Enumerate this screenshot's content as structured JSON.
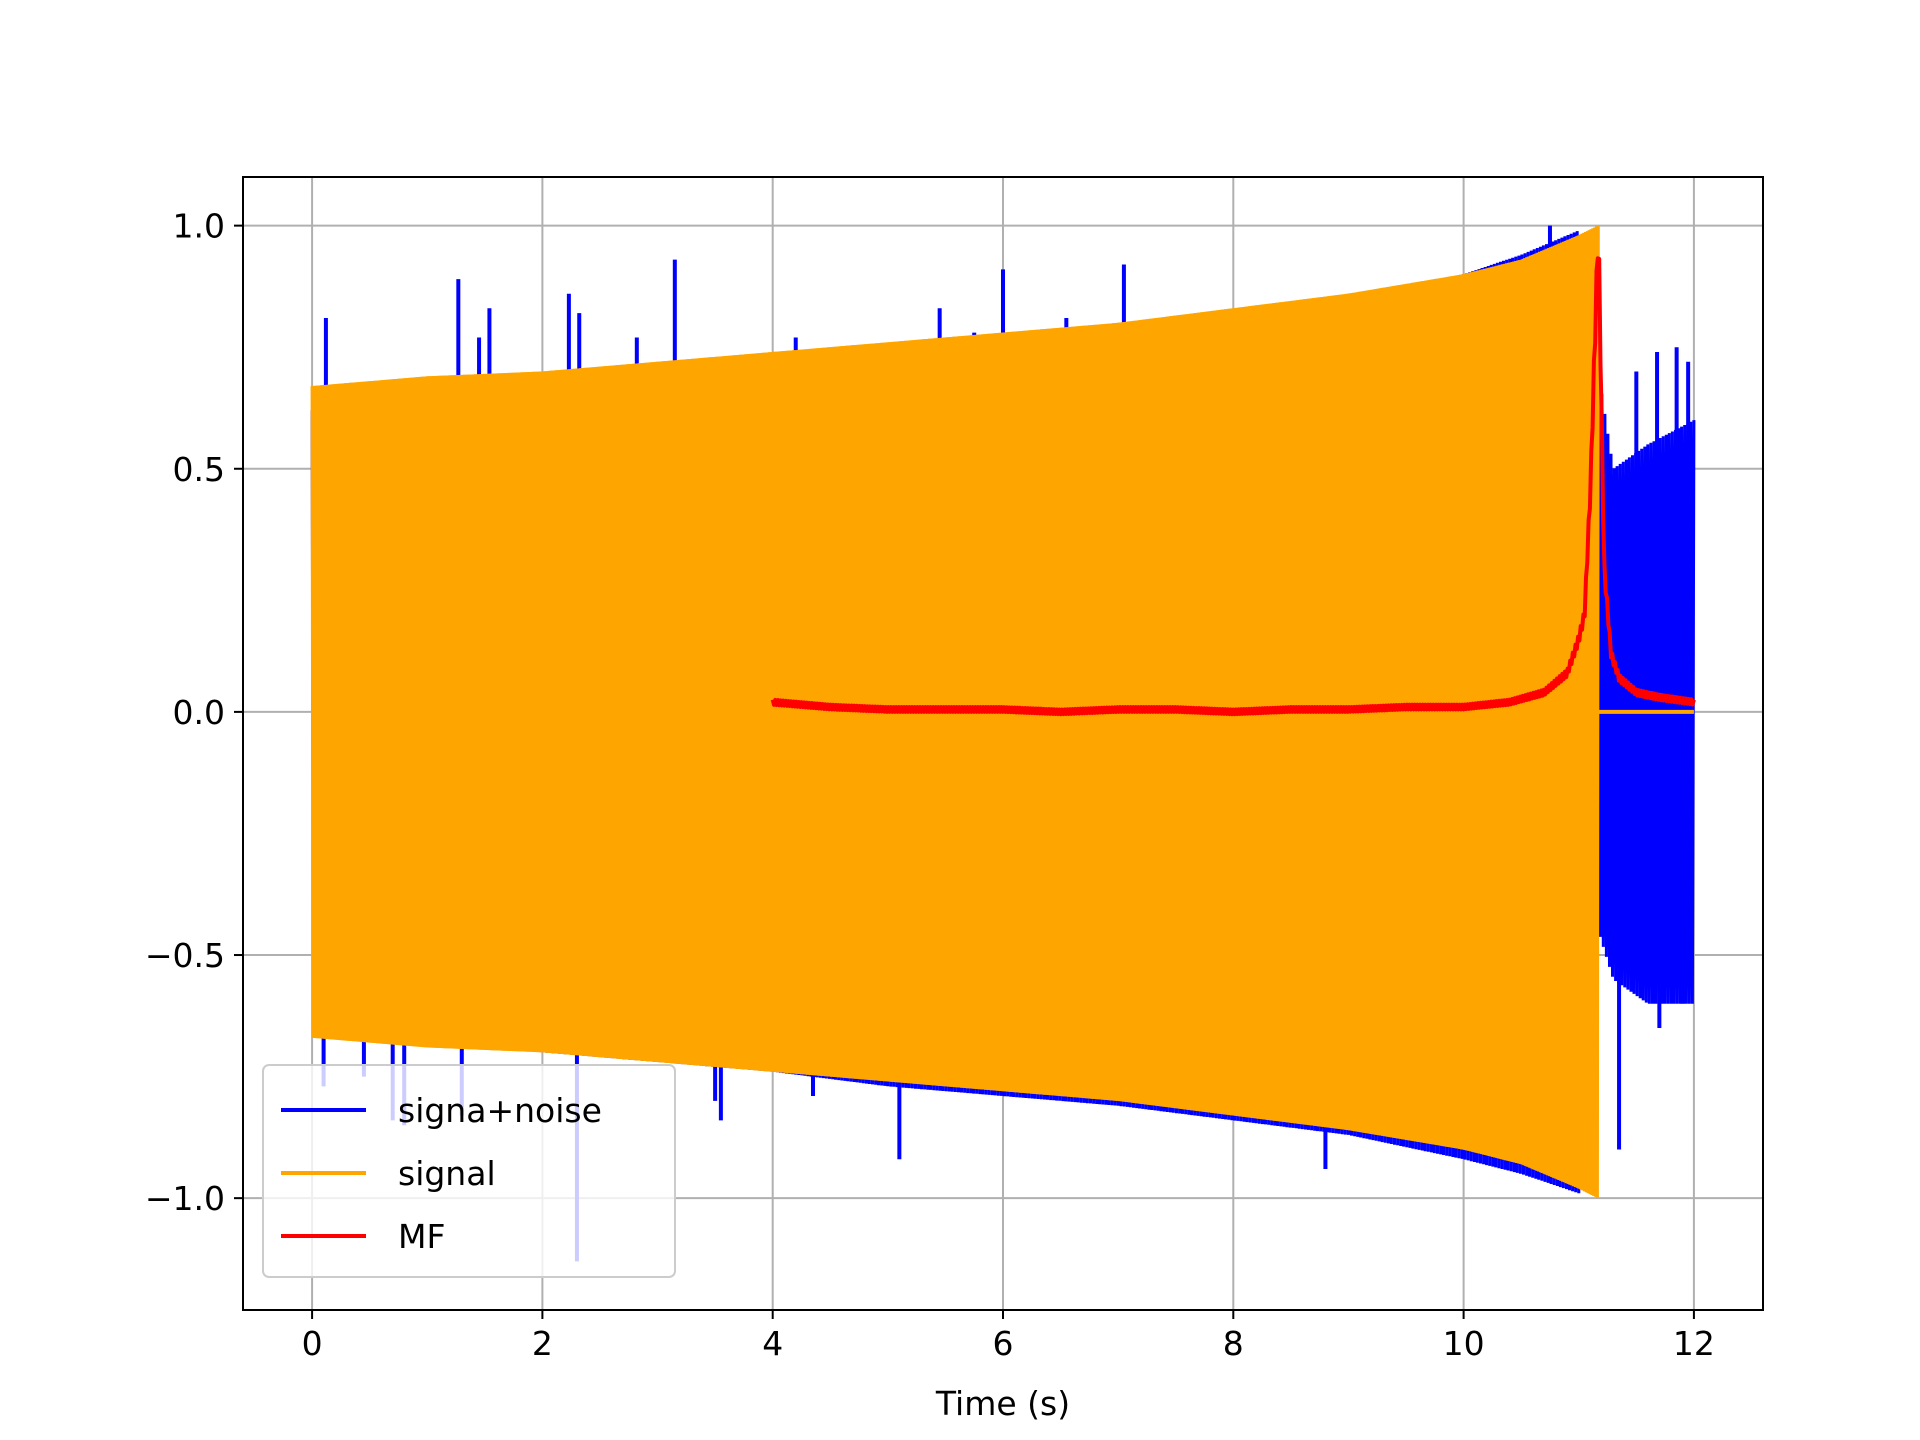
{
  "chart_data": {
    "type": "line",
    "title": "",
    "xlabel": "Time (s)",
    "ylabel": "",
    "xlim": [
      -0.6,
      12.6
    ],
    "ylim": [
      -1.23,
      1.1
    ],
    "xticks": [
      0,
      2,
      4,
      6,
      8,
      10,
      12
    ],
    "yticks": [
      -1.0,
      -0.5,
      0.0,
      0.5,
      1.0
    ],
    "xtick_labels": [
      "0",
      "2",
      "4",
      "6",
      "8",
      "10",
      "12"
    ],
    "ytick_labels": [
      "−1.0",
      "−0.5",
      "0.0",
      "0.5",
      "1.0"
    ],
    "grid": true,
    "legend_position": "lower-left",
    "series": [
      {
        "name": "signa+noise",
        "color": "#0000ff",
        "description_of_shape": "oscillating chirp plus noise spikes",
        "envelope_x": [
          0,
          1,
          2,
          3,
          4,
          5,
          6,
          7,
          8,
          9,
          10,
          10.5,
          11.0,
          11.17,
          11.3,
          11.6,
          12.0
        ],
        "envelope_upper": [
          0.62,
          0.65,
          0.66,
          0.68,
          0.71,
          0.73,
          0.76,
          0.78,
          0.81,
          0.84,
          0.9,
          0.94,
          0.99,
          0.7,
          0.5,
          0.55,
          0.6
        ],
        "envelope_lower": [
          -0.66,
          -0.68,
          -0.7,
          -0.72,
          -0.74,
          -0.77,
          -0.79,
          -0.81,
          -0.84,
          -0.87,
          -0.92,
          -0.95,
          -0.99,
          -0.45,
          -0.55,
          -0.6,
          -0.6
        ],
        "spikes": [
          {
            "x": 0.12,
            "y": 0.81
          },
          {
            "x": 1.27,
            "y": 0.89
          },
          {
            "x": 1.45,
            "y": 0.77
          },
          {
            "x": 1.54,
            "y": 0.83
          },
          {
            "x": 2.23,
            "y": 0.86
          },
          {
            "x": 2.32,
            "y": 0.82
          },
          {
            "x": 2.82,
            "y": 0.77
          },
          {
            "x": 3.15,
            "y": 0.93
          },
          {
            "x": 4.2,
            "y": 0.77
          },
          {
            "x": 5.45,
            "y": 0.83
          },
          {
            "x": 5.75,
            "y": 0.78
          },
          {
            "x": 6.0,
            "y": 0.91
          },
          {
            "x": 6.55,
            "y": 0.81
          },
          {
            "x": 7.05,
            "y": 0.92
          },
          {
            "x": 10.75,
            "y": 1.0
          },
          {
            "x": 0.1,
            "y": -0.77
          },
          {
            "x": 0.45,
            "y": -0.75
          },
          {
            "x": 0.7,
            "y": -0.84
          },
          {
            "x": 0.8,
            "y": -0.85
          },
          {
            "x": 1.3,
            "y": -0.83
          },
          {
            "x": 2.3,
            "y": -1.13
          },
          {
            "x": 3.5,
            "y": -0.8
          },
          {
            "x": 3.55,
            "y": -0.84
          },
          {
            "x": 4.35,
            "y": -0.79
          },
          {
            "x": 5.1,
            "y": -0.92
          },
          {
            "x": 7.4,
            "y": -0.82
          },
          {
            "x": 8.8,
            "y": -0.94
          },
          {
            "x": 11.35,
            "y": -0.9
          },
          {
            "x": 11.5,
            "y": 0.7
          },
          {
            "x": 11.68,
            "y": 0.74
          },
          {
            "x": 11.85,
            "y": 0.75
          },
          {
            "x": 11.95,
            "y": 0.72
          },
          {
            "x": 11.7,
            "y": -0.65
          },
          {
            "x": 11.9,
            "y": -0.6
          }
        ]
      },
      {
        "name": "signal",
        "color": "#ffa500",
        "description_of_shape": "dense chirp filling an envelope, ends at t≈11.17 then zero",
        "envelope_x": [
          0,
          1,
          2,
          3,
          4,
          5,
          6,
          7,
          8,
          9,
          10,
          10.5,
          11.0,
          11.17
        ],
        "envelope_upper": [
          0.67,
          0.69,
          0.7,
          0.72,
          0.74,
          0.76,
          0.78,
          0.8,
          0.83,
          0.86,
          0.9,
          0.93,
          0.98,
          1.0
        ],
        "envelope_lower": [
          -0.67,
          -0.69,
          -0.7,
          -0.72,
          -0.74,
          -0.76,
          -0.78,
          -0.8,
          -0.83,
          -0.86,
          -0.9,
          -0.93,
          -0.98,
          -1.0
        ],
        "tail": {
          "x": [
            11.17,
            12.0
          ],
          "y": [
            0.0,
            0.0
          ]
        }
      },
      {
        "name": "MF",
        "color": "#ff0000",
        "description_of_shape": "matched-filter output, near zero with peak 1.0 at t≈11.17",
        "x": [
          4.0,
          4.5,
          5.0,
          5.5,
          6.0,
          6.5,
          7.0,
          7.5,
          8.0,
          8.5,
          9.0,
          9.5,
          10.0,
          10.4,
          10.7,
          10.9,
          11.0,
          11.05,
          11.1,
          11.17,
          11.22,
          11.28,
          11.35,
          11.5,
          11.7,
          12.0
        ],
        "y": [
          0.02,
          0.01,
          0.005,
          0.005,
          0.005,
          0.0,
          0.005,
          0.005,
          0.0,
          0.005,
          0.005,
          0.01,
          0.01,
          0.02,
          0.04,
          0.08,
          0.15,
          0.2,
          0.45,
          1.0,
          0.3,
          0.12,
          0.07,
          0.04,
          0.03,
          0.02
        ]
      }
    ]
  }
}
